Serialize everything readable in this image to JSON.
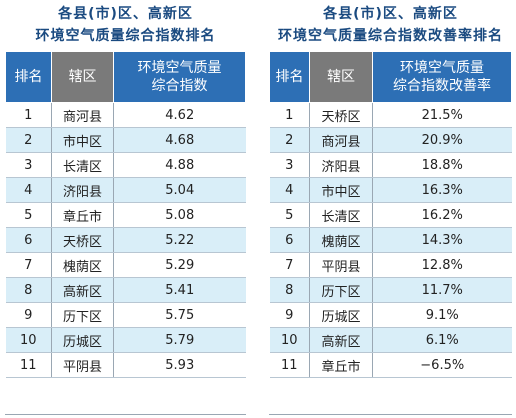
{
  "left": {
    "title1": "各县(市)区、高新区",
    "title2": "环境空气质量综合指数排名",
    "headers": {
      "rank": "排名",
      "district": "辖区",
      "value1": "环境空气质量",
      "value2": "综合指数"
    },
    "rows": [
      {
        "rank": "1",
        "district": "商河县",
        "value": "4.62"
      },
      {
        "rank": "2",
        "district": "市中区",
        "value": "4.68"
      },
      {
        "rank": "3",
        "district": "长清区",
        "value": "4.88"
      },
      {
        "rank": "4",
        "district": "济阳县",
        "value": "5.04"
      },
      {
        "rank": "5",
        "district": "章丘市",
        "value": "5.08"
      },
      {
        "rank": "6",
        "district": "天桥区",
        "value": "5.22"
      },
      {
        "rank": "7",
        "district": "槐荫区",
        "value": "5.29"
      },
      {
        "rank": "8",
        "district": "高新区",
        "value": "5.41"
      },
      {
        "rank": "9",
        "district": "历下区",
        "value": "5.75"
      },
      {
        "rank": "10",
        "district": "历城区",
        "value": "5.79"
      },
      {
        "rank": "11",
        "district": "平阴县",
        "value": "5.93"
      }
    ]
  },
  "right": {
    "title1": "各县(市)区、高新区",
    "title2": "环境空气质量综合指数改善率排名",
    "headers": {
      "rank": "排名",
      "district": "辖区",
      "value1": "环境空气质量",
      "value2": "综合指数改善率"
    },
    "rows": [
      {
        "rank": "1",
        "district": "天桥区",
        "value": "21.5%"
      },
      {
        "rank": "2",
        "district": "商河县",
        "value": "20.9%"
      },
      {
        "rank": "3",
        "district": "济阳县",
        "value": "18.8%"
      },
      {
        "rank": "4",
        "district": "市中区",
        "value": "16.3%"
      },
      {
        "rank": "5",
        "district": "长清区",
        "value": "16.2%"
      },
      {
        "rank": "6",
        "district": "槐荫区",
        "value": "14.3%"
      },
      {
        "rank": "7",
        "district": "平阴县",
        "value": "12.8%"
      },
      {
        "rank": "8",
        "district": "历下区",
        "value": "11.7%"
      },
      {
        "rank": "9",
        "district": "历城区",
        "value": "9.1%"
      },
      {
        "rank": "10",
        "district": "高新区",
        "value": "6.1%"
      },
      {
        "rank": "11",
        "district": "章丘市",
        "value": "−6.5%"
      }
    ]
  }
}
